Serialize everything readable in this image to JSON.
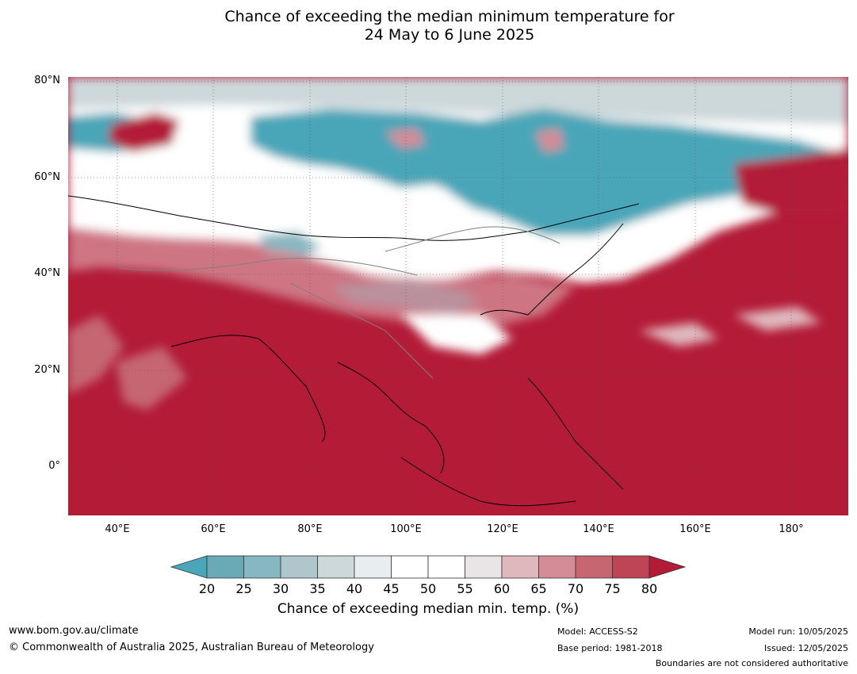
{
  "title_line1": "Chance of exceeding the median minimum temperature for",
  "title_line2": "24 May to 6 June 2025",
  "lat_labels": [
    {
      "label": "80°N",
      "lat": 80
    },
    {
      "label": "60°N",
      "lat": 60
    },
    {
      "label": "40°N",
      "lat": 40
    },
    {
      "label": "20°N",
      "lat": 20
    },
    {
      "label": "0°",
      "lat": 0
    }
  ],
  "lon_labels": [
    {
      "label": "40°E",
      "lon": 40
    },
    {
      "label": "60°E",
      "lon": 60
    },
    {
      "label": "80°E",
      "lon": 80
    },
    {
      "label": "100°E",
      "lon": 100
    },
    {
      "label": "120°E",
      "lon": 120
    },
    {
      "label": "140°E",
      "lon": 140
    },
    {
      "label": "160°E",
      "lon": 160
    },
    {
      "label": "180°",
      "lon": 180
    }
  ],
  "colorbar": {
    "ticks": [
      "20",
      "25",
      "30",
      "35",
      "40",
      "45",
      "50",
      "55",
      "60",
      "65",
      "70",
      "75",
      "80"
    ],
    "colors": [
      "#4aa6b8",
      "#6aa9b6",
      "#87b7c2",
      "#aec6cc",
      "#cdd8db",
      "#e8eef0",
      "#ffffff",
      "#ffffff",
      "#e9e5e6",
      "#dfb8be",
      "#d48c96",
      "#c56671",
      "#bd4556",
      "#b31b37"
    ],
    "label": "Chance of exceeding median min. temp. (%)"
  },
  "colors": {
    "high": "#b31b37",
    "mid_high": "#c56671",
    "light_high": "#dfb8be",
    "neutral": "#ffffff",
    "light_low": "#cdd8db",
    "low": "#4aa6b8"
  },
  "footer": {
    "url": "www.bom.gov.au/climate",
    "copyright": "© Commonwealth of Australia 2025, Australian Bureau of Meteorology",
    "model": "Model: ACCESS-S2",
    "base_period": "Base period: 1981-2018",
    "model_run": "Model run: 10/05/2025",
    "issued": "Issued: 12/05/2025",
    "disclaimer": "Boundaries are not considered authoritative"
  }
}
